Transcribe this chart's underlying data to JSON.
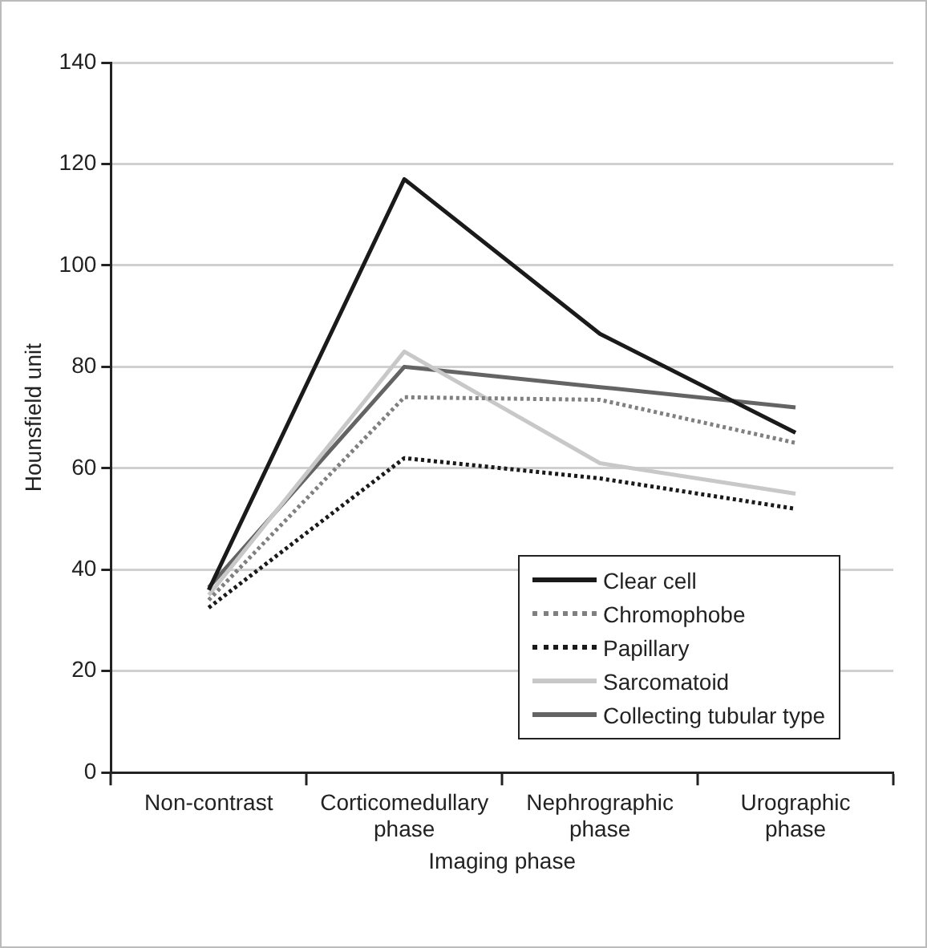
{
  "chart_data": {
    "type": "line",
    "xlabel": "Imaging phase",
    "ylabel": "Hounsfield unit",
    "categories": [
      "Non-contrast",
      "Corticomedullary phase",
      "Nephrographic phase",
      "Urographic phase"
    ],
    "series": [
      {
        "name": "Clear cell",
        "color": "#1a1a1a",
        "line_style": "solid",
        "values": [
          36,
          117,
          86.5,
          67
        ]
      },
      {
        "name": "Chromophobe",
        "color": "#808080",
        "line_style": "dotted",
        "values": [
          34,
          74,
          73.5,
          65
        ]
      },
      {
        "name": "Papillary",
        "color": "#1a1a1a",
        "line_style": "dotted",
        "values": [
          32.5,
          62,
          58,
          52
        ]
      },
      {
        "name": "Sarcomatoid",
        "color": "#c8c8c8",
        "line_style": "solid",
        "values": [
          35,
          83,
          61,
          55
        ]
      },
      {
        "name": "Collecting tubular type",
        "color": "#646464",
        "line_style": "solid",
        "values": [
          36.5,
          80,
          76,
          72
        ]
      }
    ],
    "ylim": [
      0,
      140
    ],
    "yticks": [
      0,
      20,
      40,
      60,
      80,
      100,
      120,
      140
    ],
    "grid": "y",
    "legend": "bottom right",
    "marker": "none"
  }
}
